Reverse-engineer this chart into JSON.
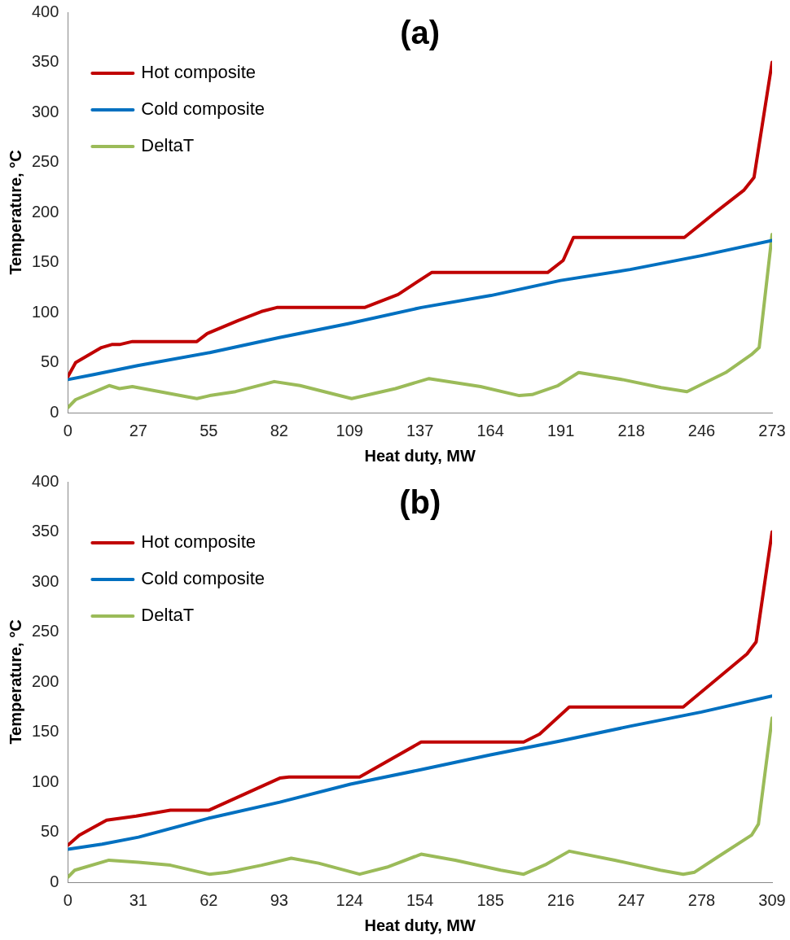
{
  "chart_data": [
    {
      "type": "line",
      "title": "(a)",
      "xlabel": "Heat duty, MW",
      "ylabel": "Temperature, °C",
      "xlim": [
        0,
        273
      ],
      "ylim": [
        0,
        400
      ],
      "xticks": [
        0,
        {
          "value": 27.3,
          "label": "27"
        },
        {
          "value": 54.6,
          "label": "55"
        },
        {
          "value": 81.9,
          "label": "82"
        },
        {
          "value": 109.2,
          "label": "109"
        },
        {
          "value": 136.5,
          "label": "137"
        },
        {
          "value": 163.8,
          "label": "164"
        },
        {
          "value": 191.1,
          "label": "191"
        },
        {
          "value": 218.4,
          "label": "218"
        },
        {
          "value": 245.7,
          "label": "246"
        },
        273
      ],
      "yticks": [
        0,
        50,
        100,
        150,
        200,
        250,
        300,
        350,
        400
      ],
      "grid": false,
      "legend": "top left",
      "marker": "none",
      "line_style": "solid",
      "series": [
        {
          "name": "Hot composite",
          "color": "#c00000",
          "x": [
            0,
            3,
            13,
            17,
            20,
            25,
            50,
            54,
            66,
            75,
            81,
            115,
            128,
            141,
            186,
            192,
            196,
            239,
            251,
            262,
            266,
            273
          ],
          "values": [
            36,
            50,
            65,
            68,
            68,
            71,
            71,
            79,
            92,
            101,
            105,
            105,
            118,
            140,
            140,
            152,
            175,
            175,
            200,
            222,
            235,
            350
          ]
        },
        {
          "name": "Cold composite",
          "color": "#0070c0",
          "x": [
            0,
            10,
            27,
            55,
            82,
            109,
            137,
            164,
            191,
            218,
            246,
            273
          ],
          "values": [
            33,
            38,
            47,
            60,
            75,
            89,
            105,
            117,
            132,
            143,
            157,
            172
          ]
        },
        {
          "name": "DeltaT",
          "color": "#9bbb59",
          "x": [
            0,
            3,
            16,
            20,
            25,
            50,
            55,
            65,
            80,
            90,
            110,
            127,
            140,
            160,
            175,
            180,
            190,
            198,
            215,
            230,
            240,
            255,
            265,
            268,
            273
          ],
          "values": [
            5,
            13,
            27,
            24,
            26,
            14,
            17,
            21,
            31,
            27,
            14,
            24,
            34,
            26,
            17,
            18,
            27,
            40,
            33,
            25,
            21,
            40,
            58,
            65,
            178
          ]
        }
      ]
    },
    {
      "type": "line",
      "title": "(b)",
      "xlabel": "Heat duty, MW",
      "ylabel": "Temperature, °C",
      "xlim": [
        0,
        309
      ],
      "ylim": [
        0,
        400
      ],
      "xticks": [
        0,
        {
          "value": 30.9,
          "label": "31"
        },
        {
          "value": 61.8,
          "label": "62"
        },
        {
          "value": 92.7,
          "label": "93"
        },
        {
          "value": 123.6,
          "label": "124"
        },
        {
          "value": 154.5,
          "label": "154"
        },
        {
          "value": 185.4,
          "label": "185"
        },
        {
          "value": 216.3,
          "label": "216"
        },
        {
          "value": 247.2,
          "label": "247"
        },
        {
          "value": 278.1,
          "label": "278"
        },
        309
      ],
      "yticks": [
        0,
        50,
        100,
        150,
        200,
        250,
        300,
        350,
        400
      ],
      "grid": false,
      "legend": "top left",
      "marker": "none",
      "line_style": "solid",
      "series": [
        {
          "name": "Hot composite",
          "color": "#c00000",
          "x": [
            0,
            5,
            17,
            30,
            45,
            62,
            93,
            97,
            128,
            155,
            200,
            207,
            220,
            270,
            298,
            302,
            309
          ],
          "values": [
            37,
            47,
            62,
            66,
            72,
            72,
            104,
            105,
            105,
            140,
            140,
            148,
            175,
            175,
            228,
            240,
            350
          ]
        },
        {
          "name": "Cold composite",
          "color": "#0070c0",
          "x": [
            0,
            15,
            31,
            62,
            93,
            124,
            154,
            185,
            216,
            247,
            278,
            309
          ],
          "values": [
            33,
            38,
            45,
            64,
            80,
            98,
            112,
            127,
            141,
            156,
            170,
            186
          ]
        },
        {
          "name": "DeltaT",
          "color": "#9bbb59",
          "x": [
            0,
            3,
            18,
            31,
            45,
            62,
            70,
            85,
            98,
            110,
            128,
            140,
            155,
            170,
            190,
            200,
            210,
            220,
            240,
            260,
            270,
            275,
            285,
            300,
            303,
            309
          ],
          "values": [
            5,
            12,
            22,
            20,
            17,
            8,
            10,
            17,
            24,
            19,
            8,
            15,
            28,
            22,
            12,
            8,
            18,
            31,
            22,
            12,
            8,
            10,
            25,
            47,
            58,
            164
          ]
        }
      ]
    }
  ]
}
